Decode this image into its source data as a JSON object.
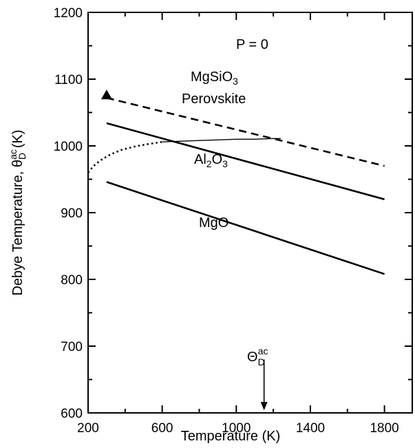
{
  "chart_data": {
    "type": "line",
    "xlabel": "Temperature (K)",
    "ylabel": "Debye Temperature, θ",
    "ylabel_sub": "D",
    "ylabel_sup": "ac",
    "ylabel_unit": "(K)",
    "xlim": [
      200,
      1950
    ],
    "ylim": [
      600,
      1200
    ],
    "xticks": [
      200,
      600,
      1000,
      1400,
      1800
    ],
    "xticks_minor": [
      400,
      800,
      1200,
      1600
    ],
    "yticks": [
      600,
      700,
      800,
      900,
      1000,
      1100,
      1200
    ],
    "yticks_minor": [
      650,
      750,
      850,
      950,
      1050,
      1150
    ],
    "grid": false,
    "series": [
      {
        "label": "MgO",
        "style": "solid",
        "x": [
          300,
          1800
        ],
        "y": [
          946,
          808
        ]
      },
      {
        "label": "Al2O3",
        "style": "solid",
        "x": [
          300,
          1800
        ],
        "y": [
          1034,
          920
        ]
      },
      {
        "label": "MgSiO3 Perovskite",
        "style": "dashed",
        "x": [
          300,
          1800
        ],
        "y": [
          1072,
          970
        ]
      },
      {
        "label": "",
        "style": "dotted",
        "x": [
          200,
          230,
          270,
          320,
          380,
          450,
          530,
          600
        ],
        "y": [
          960,
          970,
          979,
          987,
          994,
          999,
          1003,
          1006
        ]
      },
      {
        "label": "",
        "style": "thin",
        "x": [
          600,
          700,
          800,
          900,
          1000,
          1100,
          1200,
          1240
        ],
        "y": [
          1006,
          1007,
          1008,
          1009,
          1010,
          1010,
          1011,
          1011
        ]
      }
    ],
    "markers": [
      {
        "shape": "triangle",
        "x": 300,
        "y": 1076
      }
    ],
    "arrow": {
      "x": 1150,
      "y_from": 680,
      "y_to": 604
    },
    "annotations": {
      "pressure": "P = 0",
      "mgsio3_main": "MgSiO",
      "mgsio3_sub": "3",
      "perovskite": "Perovskite",
      "al2o3_a": "Al",
      "al2o3_sub1": "2",
      "al2o3_b": "O",
      "al2o3_sub2": "3",
      "mgo": "MgO",
      "theta_main": "Θ",
      "theta_sub": "D",
      "theta_sup": "ac"
    }
  }
}
